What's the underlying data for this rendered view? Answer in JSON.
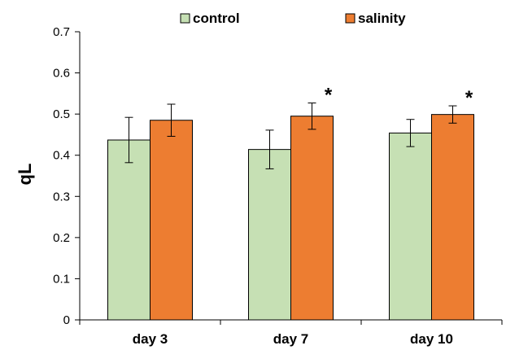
{
  "chart_data": {
    "type": "bar",
    "categories": [
      "day 3",
      "day 7",
      "day 10"
    ],
    "series": [
      {
        "name": "control",
        "color": "#c6e0b4",
        "values": [
          0.437,
          0.414,
          0.454
        ],
        "errors": [
          0.055,
          0.047,
          0.033
        ]
      },
      {
        "name": "salinity",
        "color": "#ed7d31",
        "values": [
          0.485,
          0.495,
          0.499
        ],
        "errors": [
          0.039,
          0.032,
          0.021
        ]
      }
    ],
    "significance": [
      "",
      "*",
      "*"
    ],
    "xlabel": "",
    "ylabel": "qL",
    "ylim": [
      0,
      0.7
    ],
    "yticks": [
      "0",
      "0.1",
      "0.2",
      "0.3",
      "0.4",
      "0.5",
      "0.6",
      "0.7"
    ],
    "grid": false,
    "legend_position": "top-center"
  }
}
